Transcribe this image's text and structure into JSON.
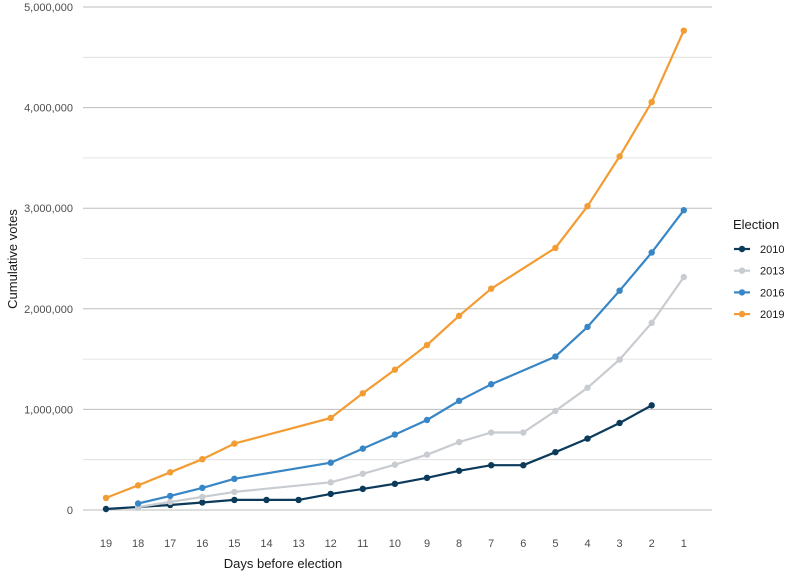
{
  "chart_data": {
    "type": "line",
    "title": "",
    "xlabel": "Days before election",
    "ylabel": "Cumulative votes",
    "x": [
      19,
      18,
      17,
      16,
      15,
      14,
      13,
      12,
      11,
      10,
      9,
      8,
      7,
      6,
      5,
      4,
      3,
      2,
      1
    ],
    "x_tick_labels": [
      "19",
      "18",
      "17",
      "16",
      "15",
      "14",
      "13",
      "12",
      "11",
      "10",
      "9",
      "8",
      "7",
      "6",
      "5",
      "4",
      "3",
      "2",
      "1"
    ],
    "ylim": [
      0,
      5000000
    ],
    "y_ticks": [
      0,
      1000000,
      2000000,
      3000000,
      4000000,
      5000000
    ],
    "y_tick_labels": [
      "0",
      "1,000,000",
      "2,000,000",
      "3,000,000",
      "4,000,000",
      "5,000,000"
    ],
    "grid": true,
    "legend": {
      "title": "Election",
      "position": "right"
    },
    "series": [
      {
        "name": "2010",
        "color": "#0b3a5a",
        "points": [
          [
            19,
            10000
          ],
          [
            18,
            30000
          ],
          [
            17,
            50000
          ],
          [
            16,
            75000
          ],
          [
            15,
            100000
          ],
          [
            14,
            100000
          ],
          [
            13,
            100000
          ],
          [
            12,
            160000
          ],
          [
            11,
            210000
          ],
          [
            10,
            260000
          ],
          [
            9,
            320000
          ],
          [
            8,
            390000
          ],
          [
            7,
            445000
          ],
          [
            6,
            445000
          ],
          [
            5,
            575000
          ],
          [
            4,
            710000
          ],
          [
            3,
            865000
          ],
          [
            2,
            1040000
          ]
        ]
      },
      {
        "name": "2013",
        "color": "#c8ccd1",
        "points": [
          [
            18,
            30000
          ],
          [
            17,
            80000
          ],
          [
            16,
            130000
          ],
          [
            15,
            180000
          ],
          [
            12,
            275000
          ],
          [
            11,
            360000
          ],
          [
            10,
            450000
          ],
          [
            9,
            550000
          ],
          [
            8,
            675000
          ],
          [
            7,
            770000
          ],
          [
            6,
            770000
          ],
          [
            5,
            985000
          ],
          [
            4,
            1215000
          ],
          [
            3,
            1495000
          ],
          [
            2,
            1860000
          ],
          [
            1,
            2315000
          ]
        ]
      },
      {
        "name": "2016",
        "color": "#3886c5",
        "points": [
          [
            18,
            65000
          ],
          [
            17,
            140000
          ],
          [
            16,
            220000
          ],
          [
            15,
            310000
          ],
          [
            12,
            470000
          ],
          [
            11,
            610000
          ],
          [
            10,
            750000
          ],
          [
            9,
            895000
          ],
          [
            8,
            1085000
          ],
          [
            7,
            1250000
          ],
          [
            5,
            1525000
          ],
          [
            4,
            1820000
          ],
          [
            3,
            2180000
          ],
          [
            2,
            2560000
          ],
          [
            1,
            2980000
          ]
        ]
      },
      {
        "name": "2019",
        "color": "#f39c33",
        "points": [
          [
            19,
            120000
          ],
          [
            18,
            245000
          ],
          [
            17,
            375000
          ],
          [
            16,
            505000
          ],
          [
            15,
            660000
          ],
          [
            12,
            915000
          ],
          [
            11,
            1160000
          ],
          [
            10,
            1395000
          ],
          [
            9,
            1640000
          ],
          [
            8,
            1930000
          ],
          [
            7,
            2200000
          ],
          [
            5,
            2605000
          ],
          [
            4,
            3020000
          ],
          [
            3,
            3515000
          ],
          [
            2,
            4055000
          ],
          [
            1,
            4765000
          ]
        ]
      }
    ]
  }
}
